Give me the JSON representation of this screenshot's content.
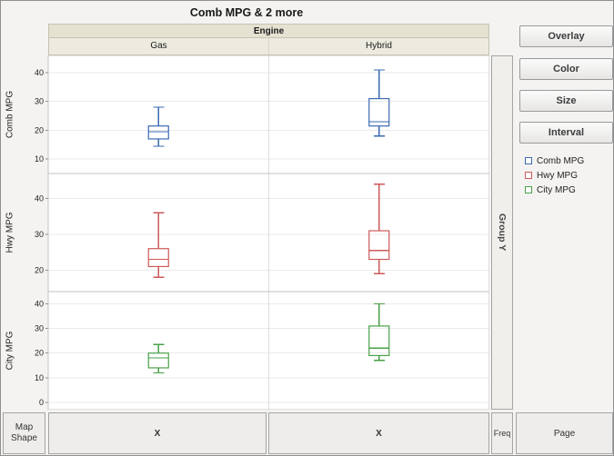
{
  "title": "Comb MPG & 2 more",
  "column_group": {
    "label": "Engine",
    "categories": [
      "Gas",
      "Hybrid"
    ]
  },
  "side_buttons": {
    "overlay": "Overlay",
    "color": "Color",
    "size": "Size",
    "interval": "Interval"
  },
  "zones": {
    "group_y": "Group Y",
    "map_shape_line1": "Map",
    "map_shape_line2": "Shape",
    "x": [
      "X",
      "X"
    ],
    "freq": "Freq",
    "page": "Page"
  },
  "legend": {
    "items": [
      {
        "label": "Comb MPG",
        "color": "#3a6ab2"
      },
      {
        "label": "Hwy MPG",
        "color": "#cd5a5a"
      },
      {
        "label": "City MPG",
        "color": "#49a149"
      }
    ]
  },
  "chart_data": {
    "type": "boxplot",
    "title": "Comb MPG & 2 more",
    "column_group_label": "Engine",
    "categories": [
      "Gas",
      "Hybrid"
    ],
    "grid": true,
    "panels": [
      {
        "row_label": "Comb MPG",
        "color": "#3a6ab2",
        "ylim": [
          5,
          46
        ],
        "yticks": [
          10,
          20,
          30,
          40
        ],
        "boxes": [
          {
            "category": "Gas",
            "low": 14.5,
            "q1": 17,
            "median": 19.5,
            "q3": 21.5,
            "high": 28
          },
          {
            "category": "Hybrid",
            "low": 18,
            "q1": 21.5,
            "median": 23,
            "q3": 31,
            "high": 41
          }
        ]
      },
      {
        "row_label": "Hwy MPG",
        "color": "#cd5a5a",
        "ylim": [
          14,
          47
        ],
        "yticks": [
          20,
          30,
          40
        ],
        "boxes": [
          {
            "category": "Gas",
            "low": 18,
            "q1": 21,
            "median": 23,
            "q3": 26,
            "high": 36
          },
          {
            "category": "Hybrid",
            "low": 19,
            "q1": 23,
            "median": 25.5,
            "q3": 31,
            "high": 44
          }
        ]
      },
      {
        "row_label": "City MPG",
        "color": "#49a149",
        "ylim": [
          -3,
          45
        ],
        "yticks": [
          0,
          10,
          20,
          30,
          40
        ],
        "boxes": [
          {
            "category": "Gas",
            "low": 12,
            "q1": 14,
            "median": 18,
            "q3": 20,
            "high": 23.5
          },
          {
            "category": "Hybrid",
            "low": 17,
            "q1": 19,
            "median": 22,
            "q3": 31,
            "high": 40
          }
        ]
      }
    ]
  }
}
